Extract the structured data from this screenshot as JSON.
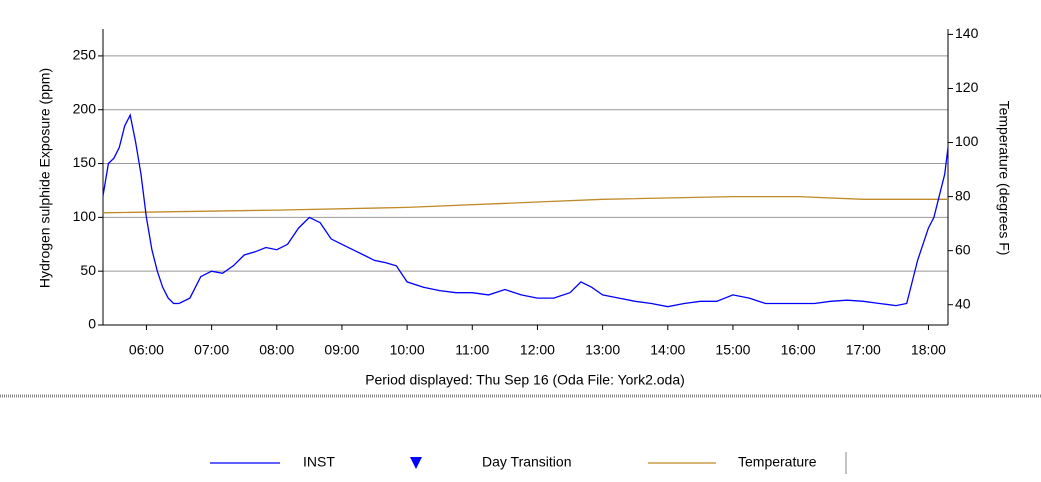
{
  "chart_data": {
    "type": "line",
    "ylabel": "Hydrogen sulphide Exposure (ppm)",
    "y2label": "Temperature (degrees F)",
    "xlabel": "Period displayed: Thu Sep 16  (Oda File: York2.oda)",
    "xlim": [
      "05:20",
      "18:18"
    ],
    "xticks": [
      "06:00",
      "07:00",
      "08:00",
      "09:00",
      "10:00",
      "11:00",
      "12:00",
      "13:00",
      "14:00",
      "15:00",
      "16:00",
      "17:00",
      "18:00"
    ],
    "ylim": [
      0,
      275
    ],
    "yticks": [
      0,
      50,
      100,
      150,
      200,
      250
    ],
    "y2lim": [
      32.5,
      142
    ],
    "y2ticks": [
      40,
      60,
      80,
      100,
      120,
      140
    ],
    "grid": true,
    "series": [
      {
        "name": "INST",
        "color": "#0000ff",
        "x": [
          "05:20",
          "05:25",
          "05:30",
          "05:35",
          "05:40",
          "05:45",
          "05:50",
          "05:55",
          "06:00",
          "06:05",
          "06:10",
          "06:15",
          "06:20",
          "06:25",
          "06:30",
          "06:40",
          "06:50",
          "07:00",
          "07:10",
          "07:20",
          "07:30",
          "07:40",
          "07:50",
          "08:00",
          "08:10",
          "08:20",
          "08:30",
          "08:40",
          "08:50",
          "09:00",
          "09:10",
          "09:20",
          "09:30",
          "09:40",
          "09:50",
          "10:00",
          "10:15",
          "10:30",
          "10:45",
          "11:00",
          "11:15",
          "11:30",
          "11:45",
          "12:00",
          "12:15",
          "12:30",
          "12:40",
          "12:50",
          "13:00",
          "13:15",
          "13:30",
          "13:45",
          "14:00",
          "14:15",
          "14:30",
          "14:45",
          "15:00",
          "15:15",
          "15:30",
          "15:45",
          "16:00",
          "16:15",
          "16:30",
          "16:45",
          "17:00",
          "17:15",
          "17:30",
          "17:40",
          "17:50",
          "18:00",
          "18:05",
          "18:10",
          "18:15",
          "18:18"
        ],
        "values": [
          120,
          150,
          155,
          165,
          185,
          195,
          170,
          140,
          100,
          70,
          50,
          35,
          25,
          20,
          20,
          25,
          45,
          50,
          48,
          55,
          65,
          68,
          72,
          70,
          75,
          90,
          100,
          95,
          80,
          75,
          70,
          65,
          60,
          58,
          55,
          40,
          35,
          32,
          30,
          30,
          28,
          33,
          28,
          25,
          25,
          30,
          40,
          35,
          28,
          25,
          22,
          20,
          17,
          20,
          22,
          22,
          28,
          25,
          20,
          20,
          20,
          20,
          22,
          23,
          22,
          20,
          18,
          20,
          60,
          90,
          100,
          120,
          140,
          165
        ]
      },
      {
        "name": "Temperature",
        "color": "#c08a28",
        "axis": "y2",
        "x": [
          "05:20",
          "08:00",
          "10:00",
          "12:00",
          "13:00",
          "15:00",
          "16:00",
          "17:00",
          "18:18"
        ],
        "values": [
          74,
          75,
          76,
          78,
          79,
          80,
          80,
          79,
          79
        ]
      }
    ],
    "day_transition": {
      "name": "Day Transition",
      "color": "#0000ff"
    }
  }
}
